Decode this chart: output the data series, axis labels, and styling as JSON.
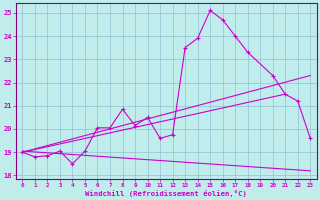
{
  "xlabel": "Windchill (Refroidissement éolien,°C)",
  "bg_color": "#c0ecec",
  "grid_color": "#98c8d8",
  "line_color": "#cc00cc",
  "xlim": [
    -0.5,
    23.5
  ],
  "ylim": [
    17.85,
    25.4
  ],
  "yticks": [
    18,
    19,
    20,
    21,
    22,
    23,
    24,
    25
  ],
  "xticks": [
    0,
    1,
    2,
    3,
    4,
    5,
    6,
    7,
    8,
    9,
    10,
    11,
    12,
    13,
    14,
    15,
    16,
    17,
    18,
    19,
    20,
    21,
    22,
    23
  ],
  "main_x": [
    0,
    1,
    2,
    3,
    4,
    5,
    6,
    7,
    8,
    9,
    10,
    11,
    12,
    13,
    14,
    15,
    16,
    17,
    18,
    20,
    21,
    22,
    23
  ],
  "main_y": [
    19.0,
    18.8,
    18.85,
    19.05,
    18.5,
    19.05,
    20.05,
    20.05,
    20.85,
    20.15,
    20.5,
    19.6,
    19.75,
    23.5,
    23.9,
    25.1,
    24.7,
    24.0,
    23.3,
    22.3,
    21.5,
    21.2,
    19.6
  ],
  "trend1_x": [
    0,
    23
  ],
  "trend1_y": [
    19.0,
    22.3
  ],
  "trend2_x": [
    0,
    21
  ],
  "trend2_y": [
    19.0,
    21.5
  ],
  "trend3_x": [
    0,
    23
  ],
  "trend3_y": [
    19.05,
    18.2
  ]
}
